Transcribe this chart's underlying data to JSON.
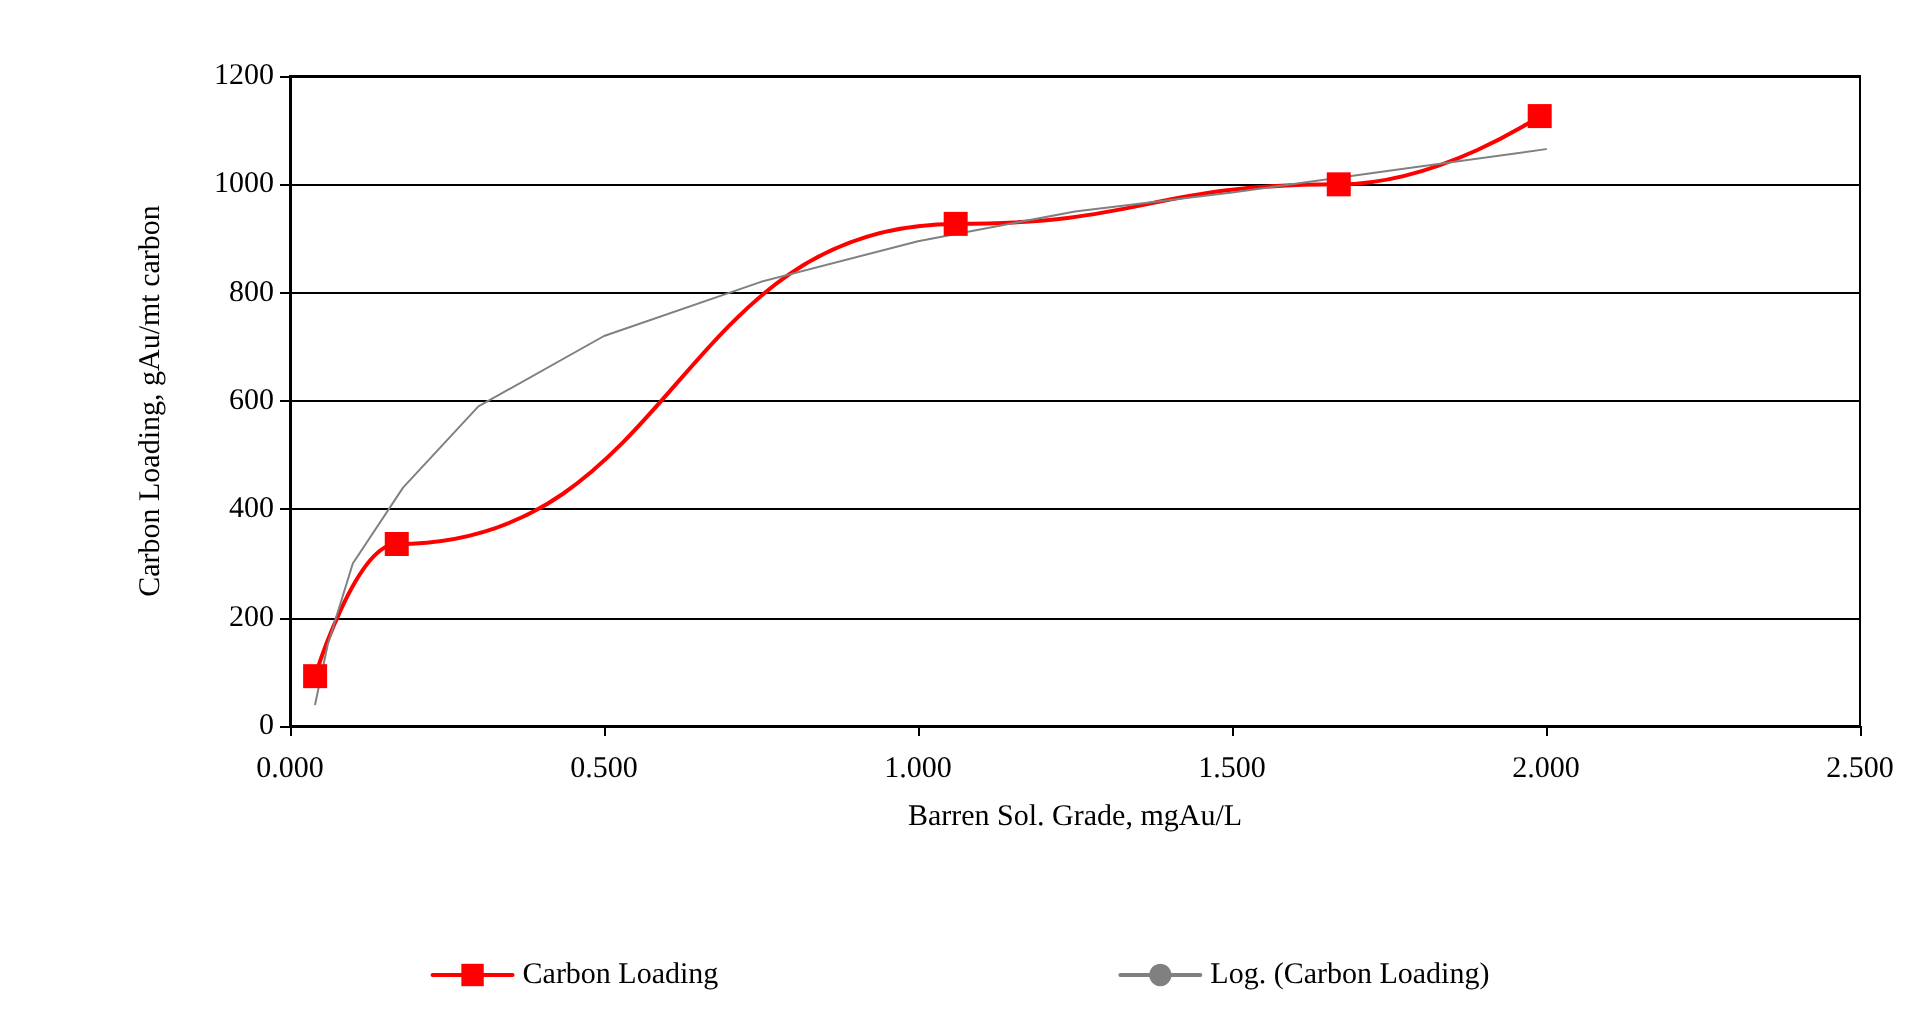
{
  "chart_data": {
    "type": "line",
    "xlabel": "Barren Sol. Grade, mgAu/L",
    "ylabel": "Carbon Loading, gAu/mt carbon",
    "series": [
      {
        "name": "Carbon Loading",
        "color": "#ff0000",
        "marker": "square",
        "x": [
          0.04,
          0.17,
          1.06,
          1.67,
          1.99
        ],
        "values": [
          92,
          336,
          927,
          1000,
          1126
        ]
      },
      {
        "name": "Log. (Carbon Loading)",
        "color": "#808080",
        "marker": "none",
        "x": [
          0.04,
          0.06,
          0.1,
          0.18,
          0.3,
          0.5,
          0.75,
          1.0,
          1.25,
          1.5,
          1.75,
          2.0
        ],
        "values": [
          40,
          150,
          300,
          440,
          590,
          720,
          820,
          895,
          950,
          985,
          1025,
          1065
        ]
      }
    ],
    "xlim": [
      0,
      2.5
    ],
    "xticks": [
      {
        "value": 0,
        "label": "0.000"
      },
      {
        "value": 0.5,
        "label": "0.500"
      },
      {
        "value": 1,
        "label": "1.000"
      },
      {
        "value": 1.5,
        "label": "1.500"
      },
      {
        "value": 2,
        "label": "2.000"
      },
      {
        "value": 2.5,
        "label": "2.500"
      }
    ],
    "ylim": [
      0,
      1200
    ],
    "yticks": [
      0,
      200,
      400,
      600,
      800,
      1000,
      1200
    ],
    "grid": "y",
    "legend": "bottom"
  }
}
